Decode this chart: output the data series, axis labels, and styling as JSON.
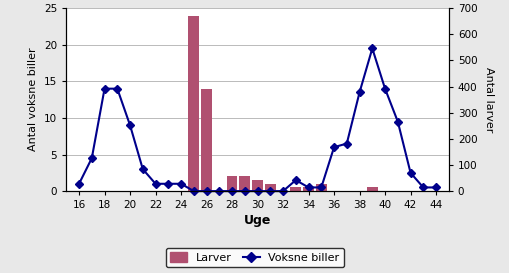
{
  "weeks": [
    16,
    17,
    18,
    19,
    20,
    21,
    22,
    23,
    24,
    25,
    26,
    27,
    28,
    29,
    30,
    31,
    32,
    33,
    34,
    35,
    36,
    37,
    38,
    39,
    40,
    41,
    42,
    43,
    44
  ],
  "voksne_biller": [
    1,
    4.5,
    14,
    14,
    9,
    3,
    1,
    1,
    1,
    0,
    0,
    0,
    0,
    0,
    0,
    0,
    0,
    1.5,
    0.5,
    0.5,
    6,
    6.5,
    13.5,
    19.5,
    14,
    9.5,
    2.5,
    0.5,
    0.5
  ],
  "larver_weeks": [
    16,
    17,
    18,
    19,
    20,
    21,
    22,
    23,
    24,
    25,
    26,
    27,
    28,
    29,
    30,
    31,
    32,
    33,
    34,
    35,
    36,
    37,
    38,
    39,
    40,
    41,
    42,
    43,
    44
  ],
  "larver_values": [
    0,
    0,
    0,
    0,
    0,
    0,
    0,
    0,
    0,
    24,
    14,
    0,
    2,
    2,
    1.5,
    1,
    0,
    0.5,
    0.5,
    1,
    0,
    0,
    0,
    0.5,
    0,
    0,
    0,
    0,
    0
  ],
  "bar_color": "#b05070",
  "line_color": "#00008b",
  "marker_color": "#00008b",
  "left_ylim": [
    0,
    25
  ],
  "right_ylim": [
    0,
    700
  ],
  "left_yticks": [
    0,
    5,
    10,
    15,
    20,
    25
  ],
  "right_yticks": [
    0,
    100,
    200,
    300,
    400,
    500,
    600,
    700
  ],
  "xlim": [
    15,
    45
  ],
  "xticks": [
    16,
    18,
    20,
    22,
    24,
    26,
    28,
    30,
    32,
    34,
    36,
    38,
    40,
    42,
    44
  ],
  "xlabel": "Uge",
  "left_ylabel": "Antal voksne biller",
  "right_ylabel": "Antal larver",
  "legend_larver": "Larver",
  "legend_voksne": "Voksne biller",
  "figure_facecolor": "#e8e8e8",
  "plot_bg_color": "#ffffff",
  "grid_color": "#b0b0b0"
}
